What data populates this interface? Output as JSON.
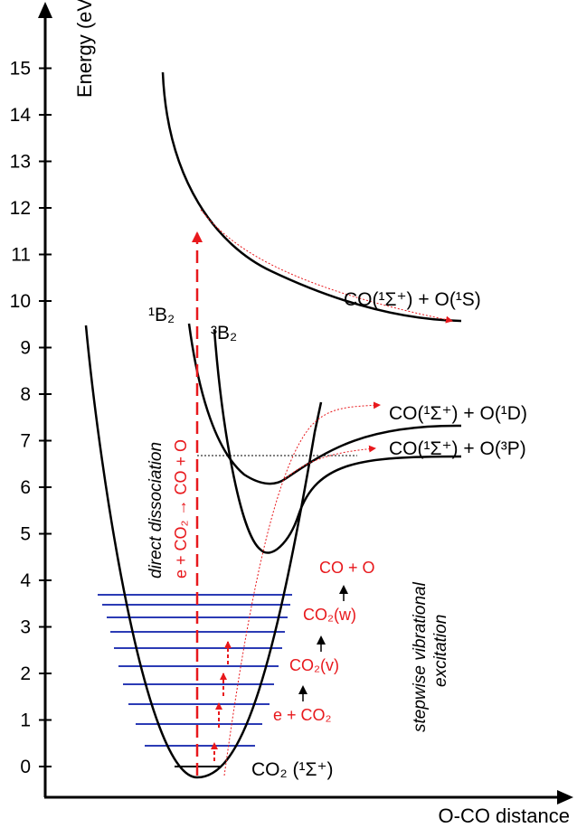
{
  "axes": {
    "y_title": "Energy (eV)",
    "x_title": "O-CO distance",
    "y_ticks": [
      "0",
      "1",
      "2",
      "3",
      "4",
      "5",
      "6",
      "7",
      "8",
      "9",
      "10",
      "11",
      "12",
      "13",
      "14",
      "15"
    ]
  },
  "states": {
    "ground": "CO₂ (¹Σ⁺)",
    "singlet_b2": "¹B₂",
    "triplet_b2": "³B₂"
  },
  "asymptotes": {
    "o1s": "CO(¹Σ⁺) + O(¹S)",
    "o1d": "CO(¹Σ⁺) + O(¹D)",
    "o3p": "CO(¹Σ⁺) + O(³P)"
  },
  "direct": {
    "reaction": "e + CO₂ → CO + O",
    "caption": "direct dissociation"
  },
  "stepwise": {
    "step1": "e + CO₂",
    "step2": "CO₂(v)",
    "step3": "CO₂(w)",
    "step4": "CO + O",
    "caption_line1": "stepwise vibrational",
    "caption_line2": "excitation"
  },
  "colors": {
    "axis": "#000000",
    "curve": "#000000",
    "vibrational_levels": "#2b3bb5",
    "process": "#e8181c"
  }
}
